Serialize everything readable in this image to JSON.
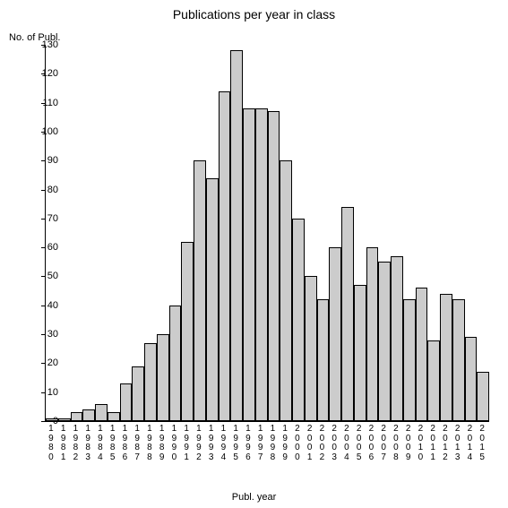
{
  "chart": {
    "type": "bar",
    "title": "Publications per year in class",
    "title_fontsize": 14,
    "ylabel": "No. of Publ.",
    "xlabel": "Publ. year",
    "label_fontsize": 11,
    "tick_fontsize": 11,
    "ylim": [
      0,
      130
    ],
    "ytick_step": 10,
    "yticks": [
      0,
      10,
      20,
      30,
      40,
      50,
      60,
      70,
      80,
      90,
      100,
      110,
      120,
      130
    ],
    "bar_color": "#cccccc",
    "bar_border_color": "#000000",
    "background_color": "#ffffff",
    "axis_color": "#000000",
    "bar_width_ratio": 1.0,
    "categories": [
      "1980",
      "1981",
      "1982",
      "1983",
      "1984",
      "1985",
      "1986",
      "1987",
      "1988",
      "1989",
      "1990",
      "1991",
      "1992",
      "1993",
      "1994",
      "1995",
      "1996",
      "1997",
      "1998",
      "1999",
      "2000",
      "2001",
      "2002",
      "2003",
      "2004",
      "2005",
      "2006",
      "2007",
      "2008",
      "2009",
      "2010",
      "2011",
      "2012",
      "2013",
      "2014",
      "2015"
    ],
    "values": [
      1,
      1,
      3,
      4,
      6,
      3,
      13,
      19,
      27,
      30,
      40,
      62,
      90,
      84,
      114,
      128,
      108,
      108,
      107,
      90,
      70,
      50,
      42,
      60,
      74,
      47,
      60,
      55,
      57,
      42,
      46,
      28,
      44,
      42,
      29,
      17
    ]
  }
}
